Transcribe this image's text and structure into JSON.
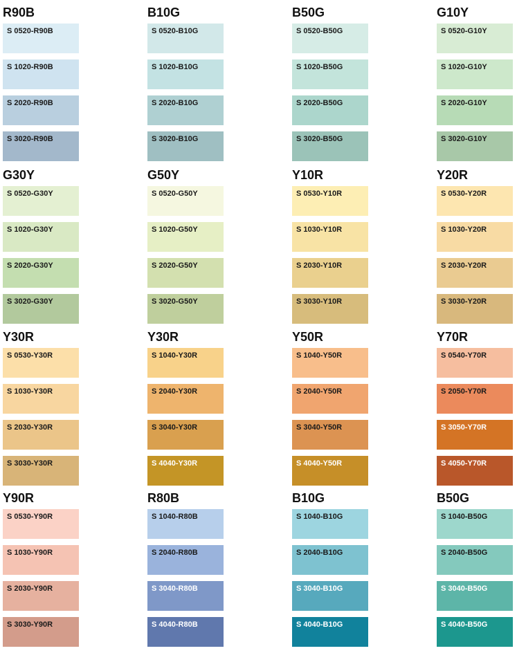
{
  "rows": [
    [
      {
        "title": "R90B",
        "swatches": [
          {
            "code": "S 0520-R90B",
            "color": "#dcedf5",
            "text": "#1a1a1a"
          },
          {
            "code": "S 1020-R90B",
            "color": "#cfe3f0",
            "text": "#1a1a1a"
          },
          {
            "code": "S 2020-R90B",
            "color": "#b9cfdf",
            "text": "#1a1a1a"
          },
          {
            "code": "S 3020-R90B",
            "color": "#a3b8cb",
            "text": "#1a1a1a"
          }
        ]
      },
      {
        "title": "B10G",
        "swatches": [
          {
            "code": "S 0520-B10G",
            "color": "#d2e8e9",
            "text": "#1a1a1a"
          },
          {
            "code": "S 1020-B10G",
            "color": "#c3e2e3",
            "text": "#1a1a1a"
          },
          {
            "code": "S 2020-B10G",
            "color": "#afd0d2",
            "text": "#1a1a1a"
          },
          {
            "code": "S 3020-B10G",
            "color": "#9fbfc2",
            "text": "#1a1a1a"
          }
        ]
      },
      {
        "title": "B50G",
        "swatches": [
          {
            "code": "S 0520-B50G",
            "color": "#d6ece6",
            "text": "#1a1a1a"
          },
          {
            "code": "S 1020-B50G",
            "color": "#c3e4db",
            "text": "#1a1a1a"
          },
          {
            "code": "S 2020-B50G",
            "color": "#acd6cc",
            "text": "#1a1a1a"
          },
          {
            "code": "S 3020-B50G",
            "color": "#9bc3b8",
            "text": "#1a1a1a"
          }
        ]
      },
      {
        "title": "G10Y",
        "swatches": [
          {
            "code": "S 0520-G10Y",
            "color": "#d8ecd4",
            "text": "#1a1a1a"
          },
          {
            "code": "S 1020-G10Y",
            "color": "#cde8cb",
            "text": "#1a1a1a"
          },
          {
            "code": "S 2020-G10Y",
            "color": "#b7dbb6",
            "text": "#1a1a1a"
          },
          {
            "code": "S 3020-G10Y",
            "color": "#a8c8a8",
            "text": "#1a1a1a"
          }
        ]
      }
    ],
    [
      {
        "title": "G30Y",
        "swatches": [
          {
            "code": "S 0520-G30Y",
            "color": "#e4f0d2",
            "text": "#1a1a1a"
          },
          {
            "code": "S 1020-G30Y",
            "color": "#d9e9c4",
            "text": "#1a1a1a"
          },
          {
            "code": "S 2020-G30Y",
            "color": "#c4deb0",
            "text": "#1a1a1a"
          },
          {
            "code": "S 3020-G30Y",
            "color": "#b2c99d",
            "text": "#1a1a1a"
          }
        ]
      },
      {
        "title": "G50Y",
        "swatches": [
          {
            "code": "S 0520-G50Y",
            "color": "#f5f7e0",
            "text": "#1a1a1a"
          },
          {
            "code": "S 1020-G50Y",
            "color": "#e6efc5",
            "text": "#1a1a1a"
          },
          {
            "code": "S 2020-G50Y",
            "color": "#d3e0af",
            "text": "#1a1a1a"
          },
          {
            "code": "S 3020-G50Y",
            "color": "#bfcf9d",
            "text": "#1a1a1a"
          }
        ]
      },
      {
        "title": "Y10R",
        "swatches": [
          {
            "code": "S 0530-Y10R",
            "color": "#fdeeb4",
            "text": "#1a1a1a"
          },
          {
            "code": "S 1030-Y10R",
            "color": "#f8e3a5",
            "text": "#1a1a1a"
          },
          {
            "code": "S 2030-Y10R",
            "color": "#ead08e",
            "text": "#1a1a1a"
          },
          {
            "code": "S 3030-Y10R",
            "color": "#d7bc7c",
            "text": "#1a1a1a"
          }
        ]
      },
      {
        "title": "Y20R",
        "swatches": [
          {
            "code": "S 0530-Y20R",
            "color": "#fde6b0",
            "text": "#1a1a1a"
          },
          {
            "code": "S 1030-Y20R",
            "color": "#f8dba4",
            "text": "#1a1a1a"
          },
          {
            "code": "S 2030-Y20R",
            "color": "#eacb91",
            "text": "#1a1a1a"
          },
          {
            "code": "S 3030-Y20R",
            "color": "#d8b87d",
            "text": "#1a1a1a"
          }
        ]
      }
    ],
    [
      {
        "title": "Y30R",
        "swatches": [
          {
            "code": "S 0530-Y30R",
            "color": "#fcdfa9",
            "text": "#1a1a1a"
          },
          {
            "code": "S 1030-Y30R",
            "color": "#f8d6a0",
            "text": "#1a1a1a"
          },
          {
            "code": "S 2030-Y30R",
            "color": "#ebc589",
            "text": "#1a1a1a"
          },
          {
            "code": "S 3030-Y30R",
            "color": "#d8b478",
            "text": "#1a1a1a"
          }
        ]
      },
      {
        "title": "Y30R",
        "swatches": [
          {
            "code": "S 1040-Y30R",
            "color": "#f8d28a",
            "text": "#1a1a1a"
          },
          {
            "code": "S 2040-Y30R",
            "color": "#eeb46d",
            "text": "#1a1a1a"
          },
          {
            "code": "S 3040-Y30R",
            "color": "#d9a04f",
            "text": "#1a1a1a"
          },
          {
            "code": "S 4040-Y30R",
            "color": "#c49526",
            "text": "#ffffff"
          }
        ]
      },
      {
        "title": "Y50R",
        "swatches": [
          {
            "code": "S 1040-Y50R",
            "color": "#f8be8b",
            "text": "#1a1a1a"
          },
          {
            "code": "S 2040-Y50R",
            "color": "#f0a56f",
            "text": "#1a1a1a"
          },
          {
            "code": "S 3040-Y50R",
            "color": "#dc9352",
            "text": "#1a1a1a"
          },
          {
            "code": "S 4040-Y50R",
            "color": "#c68f28",
            "text": "#ffffff"
          }
        ]
      },
      {
        "title": "Y70R",
        "swatches": [
          {
            "code": "S 0540-Y70R",
            "color": "#f6be9f",
            "text": "#1a1a1a"
          },
          {
            "code": "S 2050-Y70R",
            "color": "#eb8a5c",
            "text": "#1a1a1a"
          },
          {
            "code": "S 3050-Y70R",
            "color": "#d47425",
            "text": "#ffffff"
          },
          {
            "code": "S 4050-Y70R",
            "color": "#b9572a",
            "text": "#ffffff"
          }
        ]
      }
    ],
    [
      {
        "title": "Y90R",
        "swatches": [
          {
            "code": "S 0530-Y90R",
            "color": "#fbd2c6",
            "text": "#1a1a1a"
          },
          {
            "code": "S 1030-Y90R",
            "color": "#f5c3b3",
            "text": "#1a1a1a"
          },
          {
            "code": "S 2030-Y90R",
            "color": "#e6b19f",
            "text": "#1a1a1a"
          },
          {
            "code": "S 3030-Y90R",
            "color": "#d39c8b",
            "text": "#1a1a1a"
          }
        ]
      },
      {
        "title": "R80B",
        "swatches": [
          {
            "code": "S 1040-R80B",
            "color": "#b7cfeb",
            "text": "#1a1a1a"
          },
          {
            "code": "S 2040-R80B",
            "color": "#9ab3dc",
            "text": "#1a1a1a"
          },
          {
            "code": "S 3040-R80B",
            "color": "#7f98c8",
            "text": "#ffffff"
          },
          {
            "code": "S 4040-R80B",
            "color": "#6078ad",
            "text": "#ffffff"
          }
        ]
      },
      {
        "title": "B10G",
        "swatches": [
          {
            "code": "S 1040-B10G",
            "color": "#9dd5e0",
            "text": "#1a1a1a"
          },
          {
            "code": "S 2040-B10G",
            "color": "#7ec2d0",
            "text": "#1a1a1a"
          },
          {
            "code": "S 3040-B10G",
            "color": "#57a9bd",
            "text": "#ffffff"
          },
          {
            "code": "S 4040-B10G",
            "color": "#11829c",
            "text": "#ffffff"
          }
        ]
      },
      {
        "title": "B50G",
        "swatches": [
          {
            "code": "S 1040-B50G",
            "color": "#9dd7cc",
            "text": "#1a1a1a"
          },
          {
            "code": "S 2040-B50G",
            "color": "#84c9bd",
            "text": "#1a1a1a"
          },
          {
            "code": "S 3040-B50G",
            "color": "#5db5a8",
            "text": "#ffffff"
          },
          {
            "code": "S 4040-B50G",
            "color": "#1c978e",
            "text": "#ffffff"
          }
        ]
      }
    ]
  ]
}
